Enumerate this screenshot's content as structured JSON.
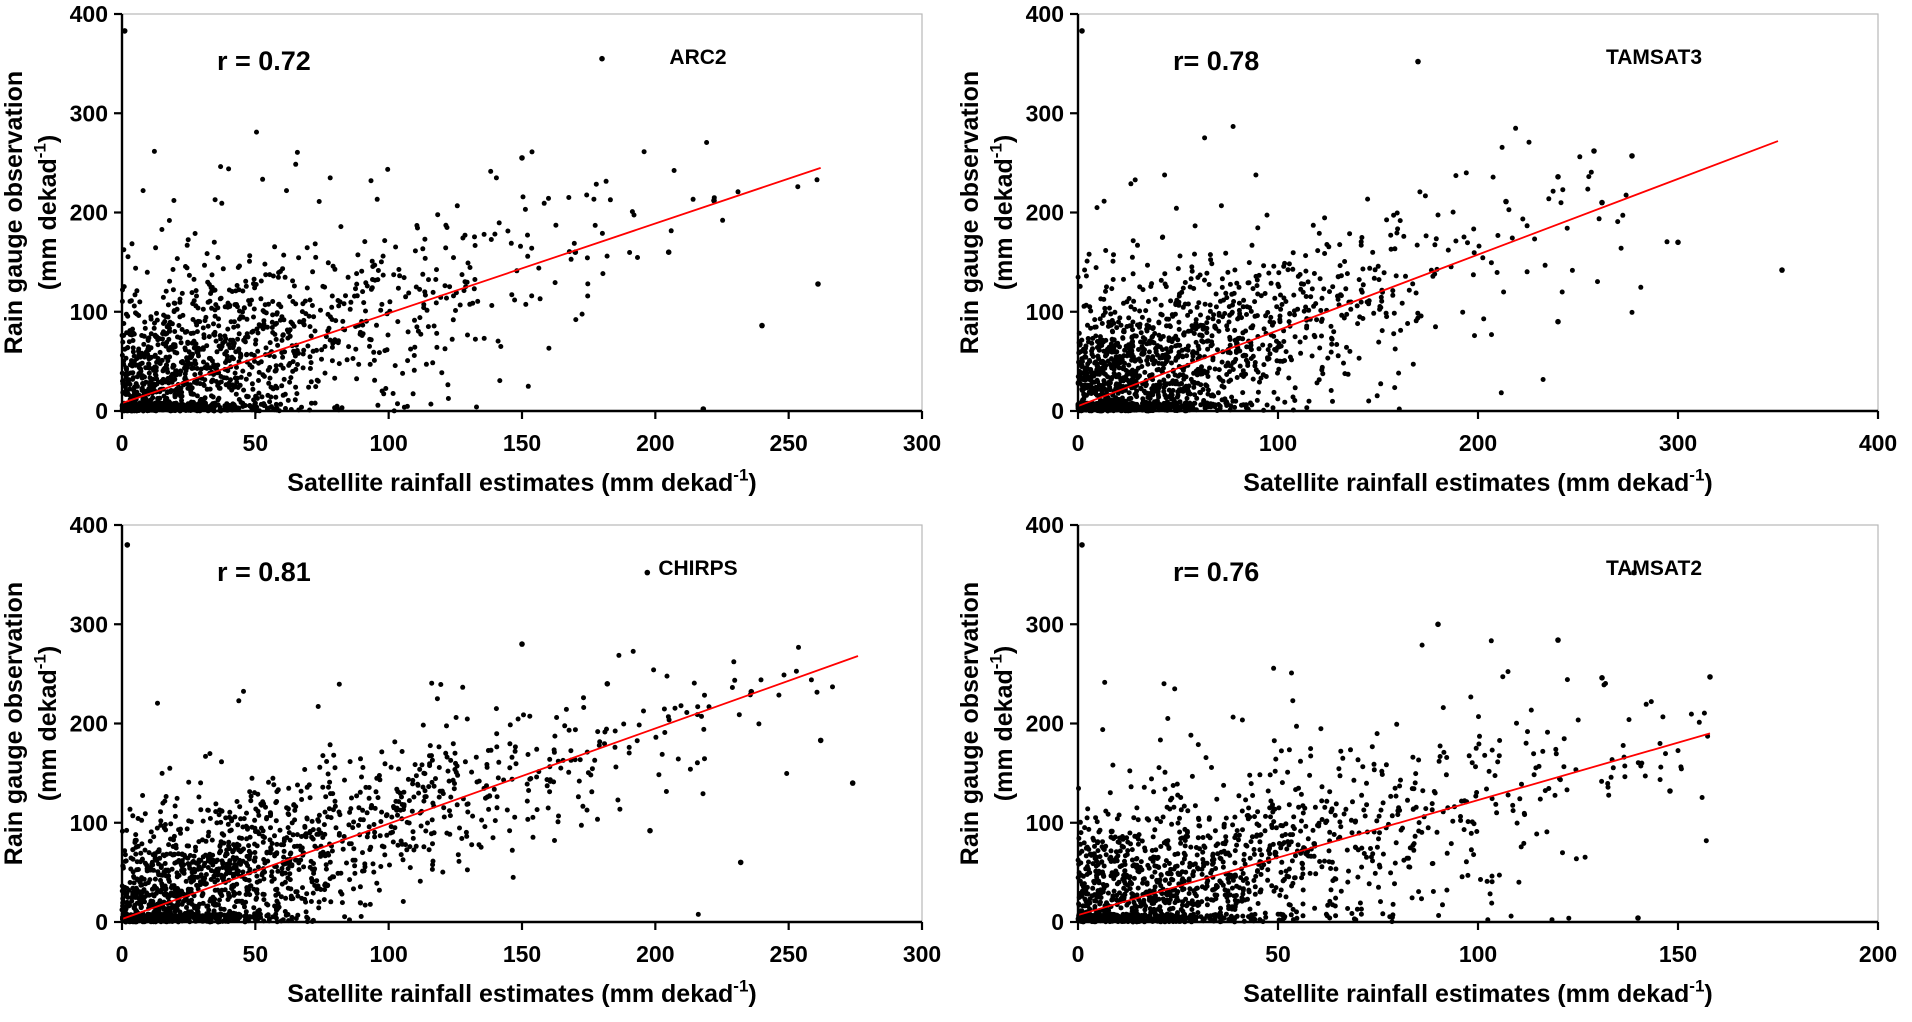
{
  "figure": {
    "background": "#ffffff",
    "point_color": "#000000",
    "line_color": "#ff0000",
    "axis_color": "#000000",
    "frame_color": "#b8b8b8",
    "text_color": "#000000"
  },
  "chart_data": [
    {
      "type": "scatter",
      "name": "ARC2",
      "r_label": "r = 0.72",
      "r_value": 0.72,
      "xlabel": {
        "pre": "Satellite rainfall estimates (mm dekad",
        "sup": "-1",
        "post": ")"
      },
      "ylabel_line1": "Rain gauge observation",
      "ylabel_line2": {
        "pre": "(mm dekad",
        "sup": "-1",
        "post": ")"
      },
      "xlim": [
        0,
        300
      ],
      "ylim": [
        0,
        400
      ],
      "xticks": [
        0,
        50,
        100,
        150,
        200,
        250,
        300
      ],
      "yticks": [
        0,
        100,
        200,
        300,
        400
      ],
      "regression_line": {
        "x": [
          0,
          262
        ],
        "y": [
          8,
          245
        ]
      },
      "points": {
        "seed": 7,
        "n": 1500,
        "x_mean": 45,
        "x_cap": 262,
        "slope": 0.9,
        "intercept": 10,
        "noise_sd": 47
      },
      "outliers": [
        [
          1,
          383
        ],
        [
          180,
          355
        ],
        [
          222,
          212
        ],
        [
          261,
          128
        ],
        [
          240,
          86
        ],
        [
          218,
          2
        ],
        [
          170,
          160
        ],
        [
          205,
          160
        ],
        [
          150,
          255
        ]
      ]
    },
    {
      "type": "scatter",
      "name": "TAMSAT3",
      "r_label": "r= 0.78",
      "r_value": 0.78,
      "xlabel": {
        "pre": "Satellite rainfall estimates (mm dekad",
        "sup": "-1",
        "post": ")"
      },
      "ylabel_line1": "Rain gauge observation",
      "ylabel_line2": {
        "pre": "(mm dekad",
        "sup": "-1",
        "post": ")"
      },
      "xlim": [
        0,
        400
      ],
      "ylim": [
        0,
        400
      ],
      "xticks": [
        0,
        100,
        200,
        300,
        400
      ],
      "yticks": [
        0,
        100,
        200,
        300,
        400
      ],
      "regression_line": {
        "x": [
          0,
          350
        ],
        "y": [
          5,
          272
        ]
      },
      "points": {
        "seed": 21,
        "n": 1700,
        "x_mean": 55,
        "x_cap": 300,
        "slope": 0.76,
        "intercept": 6,
        "noise_sd": 45
      },
      "outliers": [
        [
          2,
          383
        ],
        [
          170,
          352
        ],
        [
          214,
          211
        ],
        [
          240,
          236
        ],
        [
          258,
          262
        ],
        [
          277,
          257
        ],
        [
          352,
          142
        ],
        [
          300,
          170
        ],
        [
          240,
          90
        ],
        [
          262,
          210
        ]
      ]
    },
    {
      "type": "scatter",
      "name": "CHIRPS",
      "r_label": "r = 0.81",
      "r_value": 0.81,
      "xlabel": {
        "pre": "Satellite rainfall estimates (mm dekad",
        "sup": "-1",
        "post": ")"
      },
      "ylabel_line1": "Rain gauge observation",
      "ylabel_line2": {
        "pre": "(mm dekad",
        "sup": "-1",
        "post": ")"
      },
      "xlim": [
        0,
        300
      ],
      "ylim": [
        0,
        400
      ],
      "xticks": [
        0,
        50,
        100,
        150,
        200,
        250,
        300
      ],
      "yticks": [
        0,
        100,
        200,
        300,
        400
      ],
      "regression_line": {
        "x": [
          0,
          276
        ],
        "y": [
          3,
          268
        ]
      },
      "points": {
        "seed": 33,
        "n": 1700,
        "x_mean": 55,
        "x_cap": 268,
        "slope": 0.95,
        "intercept": 4,
        "noise_sd": 40
      },
      "outliers": [
        [
          2,
          380
        ],
        [
          197,
          352
        ],
        [
          236,
          232
        ],
        [
          262,
          183
        ],
        [
          274,
          140
        ],
        [
          232,
          60
        ],
        [
          198,
          92
        ],
        [
          182,
          240
        ],
        [
          150,
          280
        ]
      ]
    },
    {
      "type": "scatter",
      "name": "TAMSAT2",
      "r_label": "r= 0.76",
      "r_value": 0.76,
      "xlabel": {
        "pre": "Satellite rainfall estimates (mm dekad",
        "sup": "-1",
        "post": ")"
      },
      "ylabel_line1": "Rain gauge observation",
      "ylabel_line2": {
        "pre": "(mm dekad",
        "sup": "-1",
        "post": ")"
      },
      "xlim": [
        0,
        200
      ],
      "ylim": [
        0,
        400
      ],
      "xticks": [
        0,
        50,
        100,
        150,
        200
      ],
      "yticks": [
        0,
        100,
        200,
        300,
        400
      ],
      "regression_line": {
        "x": [
          0,
          158
        ],
        "y": [
          7,
          190
        ]
      },
      "points": {
        "seed": 45,
        "n": 1500,
        "x_mean": 40,
        "x_cap": 158,
        "slope": 1.05,
        "intercept": 10,
        "noise_sd": 45
      },
      "outliers": [
        [
          1,
          380
        ],
        [
          139,
          352
        ],
        [
          158,
          247
        ],
        [
          120,
          284
        ],
        [
          131,
          246
        ],
        [
          140,
          4
        ],
        [
          148,
          132
        ],
        [
          90,
          300
        ]
      ]
    }
  ]
}
